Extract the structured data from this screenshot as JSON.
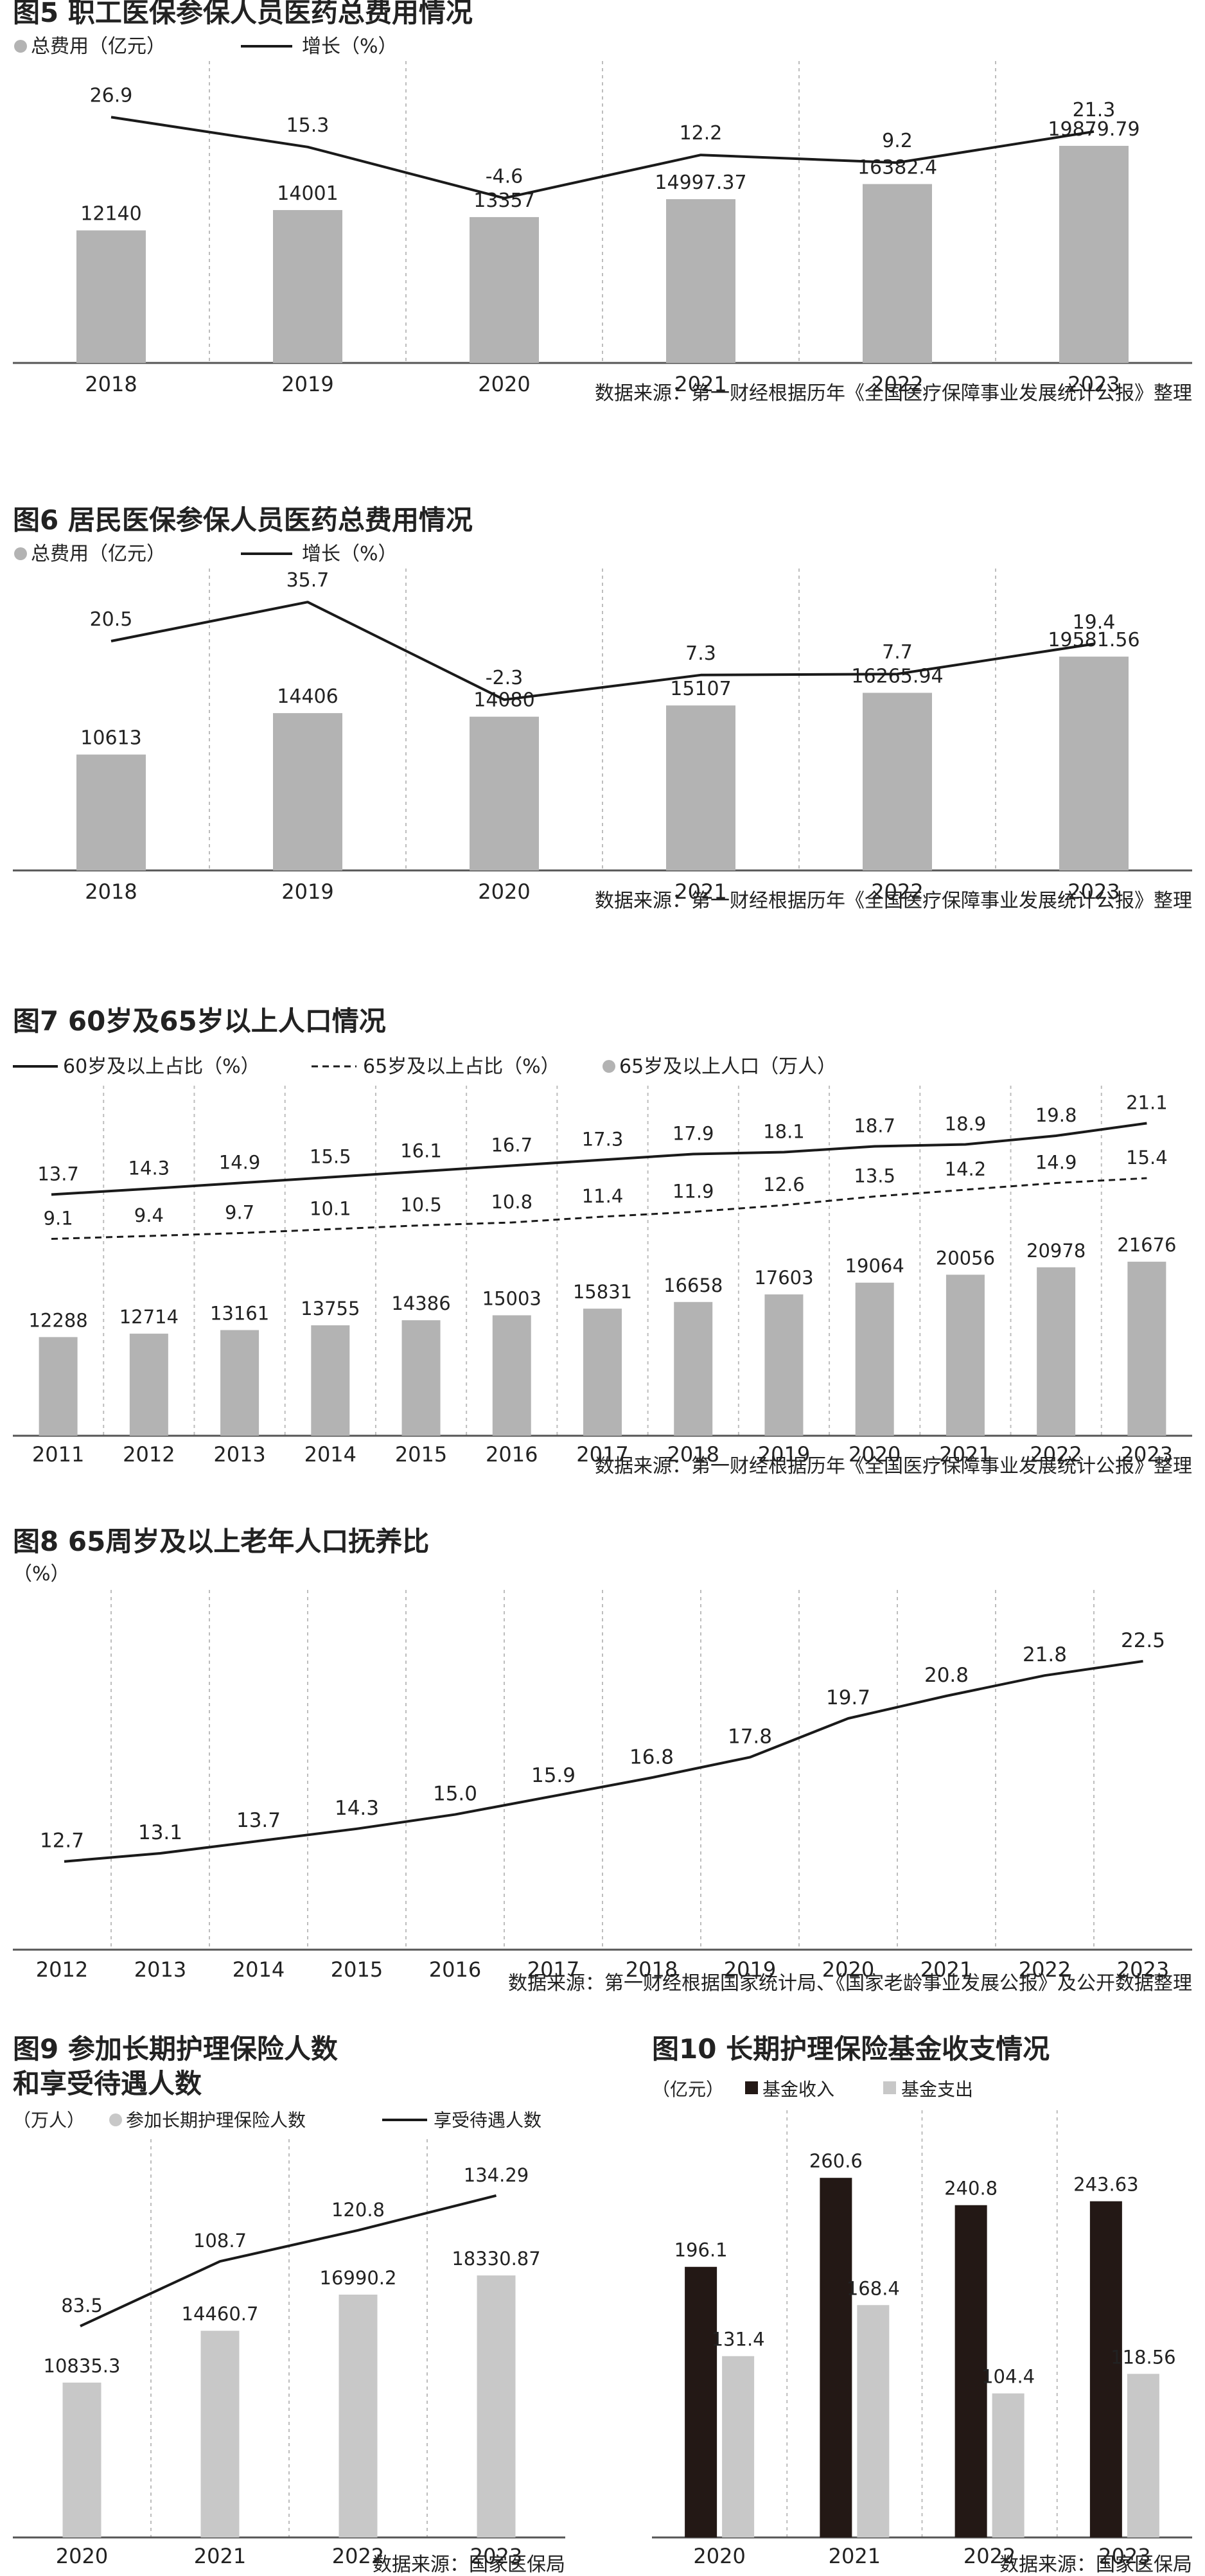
{
  "colors": {
    "bar_gray": "#b3b3b3",
    "bar_light": "#c8c8c8",
    "bar_dark": "#231815",
    "line": "#1a1a1a",
    "divider": "#bdbdbd",
    "axis": "#555555"
  },
  "charts": [
    {
      "id": "fig5",
      "title": "图5 职工医保参保人员医药总费用情况",
      "legend": {
        "bar": "总费用（亿元）",
        "line": "增长（%）"
      },
      "source": "数据来源：第一财经根据历年《全国医疗保障事业发展统计公报》整理",
      "chart_data": {
        "type": "bar",
        "categories": [
          "2018",
          "2019",
          "2020",
          "2021",
          "2022",
          "2023"
        ],
        "series": [
          {
            "name": "总费用（亿元）",
            "values": [
              12140,
              14001,
              13357,
              14997.37,
              16382.4,
              19879.79
            ],
            "labels": [
              "12140",
              "14001",
              "13357",
              "14997.37",
              "16382.4",
              "19879.79"
            ]
          },
          {
            "name": "增长（%）",
            "type": "line",
            "values": [
              26.9,
              15.3,
              -4.6,
              12.2,
              9.2,
              21.3
            ],
            "labels": [
              "26.9",
              "15.3",
              "-4.6",
              "12.2",
              "9.2",
              "21.3"
            ]
          }
        ]
      }
    },
    {
      "id": "fig6",
      "title": "图6 居民医保参保人员医药总费用情况",
      "legend": {
        "bar": "总费用（亿元）",
        "line": "增长（%）"
      },
      "source": "数据来源：第一财经根据历年《全国医疗保障事业发展统计公报》整理",
      "chart_data": {
        "type": "bar",
        "categories": [
          "2018",
          "2019",
          "2020",
          "2021",
          "2022",
          "2023"
        ],
        "series": [
          {
            "name": "总费用（亿元）",
            "values": [
              10613,
              14406,
              14080,
              15107,
              16265.94,
              19581.56
            ],
            "labels": [
              "10613",
              "14406",
              "14080",
              "15107",
              "16265.94",
              "19581.56"
            ]
          },
          {
            "name": "增长（%）",
            "type": "line",
            "values": [
              20.5,
              35.7,
              -2.3,
              7.3,
              7.7,
              19.4
            ],
            "labels": [
              "20.5",
              "35.7",
              "-2.3",
              "7.3",
              "7.7",
              "19.4"
            ]
          }
        ]
      }
    },
    {
      "id": "fig7",
      "title": "图7 60岁及65岁以上人口情况",
      "legend": {
        "line1": "60岁及以上占比（%）",
        "line2": "65岁及以上占比（%）",
        "bar": "65岁及以上人口（万人）"
      },
      "source": "数据来源：第一财经根据历年《全国医疗保障事业发展统计公报》整理",
      "chart_data": {
        "type": "bar",
        "categories": [
          "2011",
          "2012",
          "2013",
          "2014",
          "2015",
          "2016",
          "2017",
          "2018",
          "2019",
          "2020",
          "2021",
          "2022",
          "2023"
        ],
        "series": [
          {
            "name": "65岁及以上人口（万人）",
            "values": [
              12288,
              12714,
              13161,
              13755,
              14386,
              15003,
              15831,
              16658,
              17603,
              19064,
              20056,
              20978,
              21676
            ],
            "labels": [
              "12288",
              "12714",
              "13161",
              "13755",
              "14386",
              "15003",
              "15831",
              "16658",
              "17603",
              "19064",
              "20056",
              "20978",
              "21676"
            ]
          },
          {
            "name": "60岁及以上占比（%）",
            "type": "line",
            "values": [
              13.7,
              14.3,
              14.9,
              15.5,
              16.1,
              16.7,
              17.3,
              17.9,
              18.1,
              18.7,
              18.9,
              19.8,
              21.1
            ],
            "labels": [
              "13.7",
              "14.3",
              "14.9",
              "15.5",
              "16.1",
              "16.7",
              "17.3",
              "17.9",
              "18.1",
              "18.7",
              "18.9",
              "19.8",
              "21.1"
            ]
          },
          {
            "name": "65岁及以上占比（%）",
            "type": "line",
            "dashed": true,
            "values": [
              9.1,
              9.4,
              9.7,
              10.1,
              10.5,
              10.8,
              11.4,
              11.9,
              12.6,
              13.5,
              14.2,
              14.9,
              15.4
            ],
            "labels": [
              "9.1",
              "9.4",
              "9.7",
              "10.1",
              "10.5",
              "10.8",
              "11.4",
              "11.9",
              "12.6",
              "13.5",
              "14.2",
              "14.9",
              "15.4"
            ]
          }
        ]
      }
    },
    {
      "id": "fig8",
      "title": "图8 65周岁及以上老年人口抚养比",
      "unit": "（%）",
      "source": "数据来源：第一财经根据国家统计局、《国家老龄事业发展公报》及公开数据整理",
      "chart_data": {
        "type": "line",
        "categories": [
          "2012",
          "2013",
          "2014",
          "2015",
          "2016",
          "2017",
          "2018",
          "2019",
          "2020",
          "2021",
          "2022",
          "2023"
        ],
        "series": [
          {
            "values": [
              12.7,
              13.1,
              13.7,
              14.3,
              15.0,
              15.9,
              16.8,
              17.8,
              19.7,
              20.8,
              21.8,
              22.5
            ],
            "labels": [
              "12.7",
              "13.1",
              "13.7",
              "14.3",
              "15.0",
              "15.9",
              "16.8",
              "17.8",
              "19.7",
              "20.8",
              "21.8",
              "22.5"
            ]
          }
        ]
      }
    },
    {
      "id": "fig9",
      "title_line1": "图9 参加长期护理保险人数",
      "title_line2": "和享受待遇人数",
      "unit": "（万人）",
      "legend": {
        "bar": "参加长期护理保险人数",
        "line": "享受待遇人数"
      },
      "source": "数据来源：国家医保局",
      "chart_data": {
        "type": "bar",
        "categories": [
          "2020",
          "2021",
          "2022",
          "2023"
        ],
        "series": [
          {
            "name": "参加长期护理保险人数",
            "values": [
              10835.3,
              14460.7,
              16990.2,
              18330.87
            ],
            "labels": [
              "10835.3",
              "14460.7",
              "16990.2",
              "18330.87"
            ]
          },
          {
            "name": "享受待遇人数",
            "type": "line",
            "values": [
              83.5,
              108.7,
              120.8,
              134.29
            ],
            "labels": [
              "83.5",
              "108.7",
              "120.8",
              "134.29"
            ]
          }
        ]
      }
    },
    {
      "id": "fig10",
      "title": "图10 长期护理保险基金收支情况",
      "unit": "（亿元）",
      "legend": {
        "bar1": "基金收入",
        "bar2": "基金支出"
      },
      "source": "数据来源：国家医保局",
      "chart_data": {
        "type": "bar",
        "categories": [
          "2020",
          "2021",
          "2022",
          "2023"
        ],
        "series": [
          {
            "name": "基金收入",
            "values": [
              196.1,
              260.6,
              240.8,
              243.63
            ],
            "labels": [
              "196.1",
              "260.6",
              "240.8",
              "243.63"
            ]
          },
          {
            "name": "基金支出",
            "values": [
              131.4,
              168.4,
              104.4,
              118.56
            ],
            "labels": [
              "131.4",
              "168.4",
              "104.4",
              "118.56"
            ]
          }
        ]
      }
    }
  ]
}
